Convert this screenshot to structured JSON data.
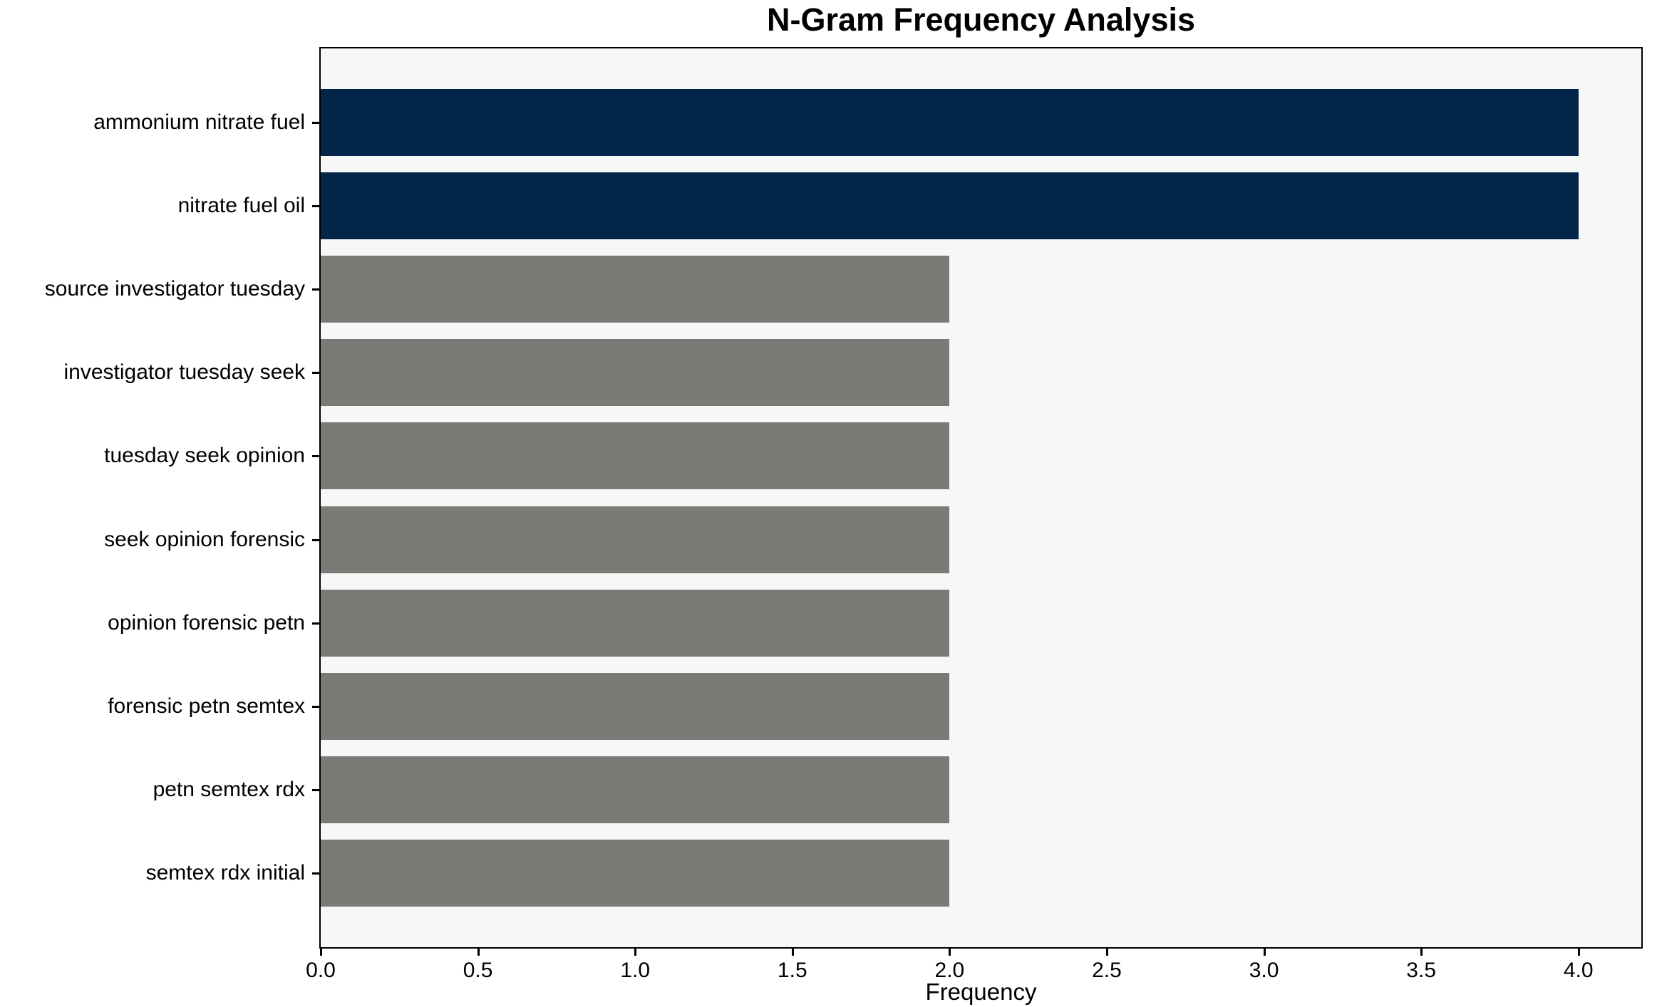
{
  "chart_data": {
    "type": "bar",
    "orientation": "horizontal",
    "title": "N-Gram Frequency Analysis",
    "xlabel": "Frequency",
    "ylabel": "",
    "categories": [
      "ammonium nitrate fuel",
      "nitrate fuel oil",
      "source investigator tuesday",
      "investigator tuesday seek",
      "tuesday seek opinion",
      "seek opinion forensic",
      "opinion forensic petn",
      "forensic petn semtex",
      "petn semtex rdx",
      "semtex rdx initial"
    ],
    "values": [
      4,
      4,
      2,
      2,
      2,
      2,
      2,
      2,
      2,
      2
    ],
    "bar_colors": [
      "#022549",
      "#022549",
      "#7b7a76",
      "#7b7a76",
      "#7b7a76",
      "#7b7a76",
      "#7b7a76",
      "#7b7a76",
      "#7b7a76",
      "#7b7a76"
    ],
    "xlim": [
      0,
      4.2
    ],
    "xticks": [
      0.0,
      0.5,
      1.0,
      1.5,
      2.0,
      2.5,
      3.0,
      3.5,
      4.0
    ],
    "xtick_labels": [
      "0.0",
      "0.5",
      "1.0",
      "1.5",
      "2.0",
      "2.5",
      "3.0",
      "3.5",
      "4.0"
    ],
    "grid": false,
    "legend": null,
    "colors": {
      "highlight_navy": "#022549",
      "default_gray": "#7b7a76",
      "plot_background": "#f8f7f7",
      "spine": "#000000",
      "text": "#000000",
      "figure_background": "#ffffff"
    }
  }
}
